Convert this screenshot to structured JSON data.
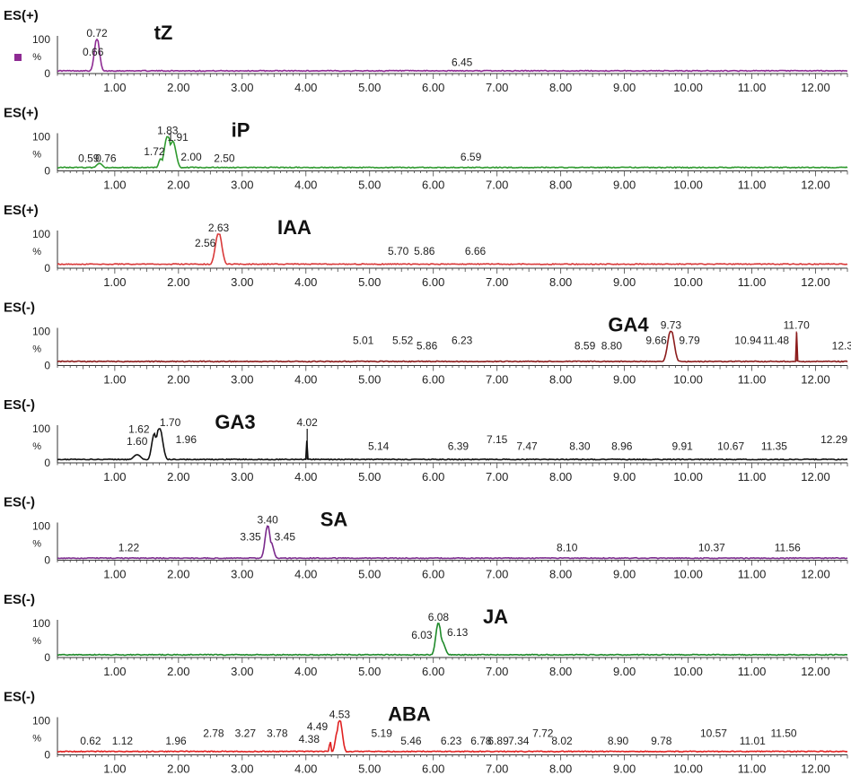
{
  "chart_data": [
    {
      "type": "line",
      "mode_label": "ES(+)",
      "compound": "tZ",
      "color": "#8e2b93",
      "x_ticks": [
        "1.00",
        "2.00",
        "3.00",
        "4.00",
        "5.00",
        "6.00",
        "7.00",
        "8.00",
        "9.00",
        "10.00",
        "11.00",
        "12.00"
      ],
      "xlim": [
        0.1,
        12.5
      ],
      "y_ticks": [
        "100",
        "0"
      ],
      "ylim": [
        0,
        100
      ],
      "ylabel": "%",
      "baseline": 8,
      "peaks": [
        {
          "x": 0.72,
          "y": 100,
          "w": 0.04
        }
      ],
      "labels": [
        {
          "text": "0.72",
          "x": 0.72,
          "y": 100
        },
        {
          "text": "0.66",
          "x": 0.66,
          "y": 45
        },
        {
          "text": "6.45",
          "x": 6.45,
          "y": 15
        }
      ],
      "marker": true
    },
    {
      "type": "line",
      "mode_label": "ES(+)",
      "compound": "iP",
      "color": "#2f9a2f",
      "x_ticks": [
        "1.00",
        "2.00",
        "3.00",
        "4.00",
        "5.00",
        "6.00",
        "7.00",
        "8.00",
        "9.00",
        "10.00",
        "11.00",
        "12.00"
      ],
      "xlim": [
        0.1,
        12.5
      ],
      "y_ticks": [
        "100",
        "0"
      ],
      "ylim": [
        0,
        100
      ],
      "ylabel": "%",
      "baseline": 10,
      "peaks": [
        {
          "x": 1.83,
          "y": 100,
          "w": 0.05
        },
        {
          "x": 1.91,
          "y": 82,
          "w": 0.05
        },
        {
          "x": 1.72,
          "y": 30,
          "w": 0.03
        },
        {
          "x": 0.76,
          "y": 16,
          "w": 0.05
        }
      ],
      "labels": [
        {
          "text": "1.83",
          "x": 1.83,
          "y": 100
        },
        {
          "text": "1.91",
          "x": 1.99,
          "y": 80
        },
        {
          "text": "1.72",
          "x": 1.62,
          "y": 38
        },
        {
          "text": "0.59",
          "x": 0.59,
          "y": 18
        },
        {
          "text": "0.76",
          "x": 0.86,
          "y": 18
        },
        {
          "text": "2.00",
          "x": 2.2,
          "y": 22
        },
        {
          "text": "2.50",
          "x": 2.72,
          "y": 18
        },
        {
          "text": "6.59",
          "x": 6.59,
          "y": 22
        }
      ],
      "marker": false
    },
    {
      "type": "line",
      "mode_label": "ES(+)",
      "compound": "IAA",
      "color": "#d93a3a",
      "x_ticks": [
        "1.00",
        "2.00",
        "3.00",
        "4.00",
        "5.00",
        "6.00",
        "7.00",
        "8.00",
        "9.00",
        "10.00",
        "11.00",
        "12.00"
      ],
      "xlim": [
        0.1,
        12.5
      ],
      "y_ticks": [
        "100",
        "0"
      ],
      "ylim": [
        0,
        100
      ],
      "ylabel": "%",
      "baseline": 12,
      "peaks": [
        {
          "x": 2.63,
          "y": 100,
          "w": 0.05
        }
      ],
      "labels": [
        {
          "text": "2.63",
          "x": 2.63,
          "y": 100
        },
        {
          "text": "2.56",
          "x": 2.42,
          "y": 55
        },
        {
          "text": "5.70",
          "x": 5.45,
          "y": 32
        },
        {
          "text": "5.86",
          "x": 5.86,
          "y": 32
        },
        {
          "text": "6.66",
          "x": 6.66,
          "y": 32
        }
      ],
      "marker": false
    },
    {
      "type": "line",
      "mode_label": "ES(-)",
      "compound": "GA4",
      "color": "#8c1c1c",
      "x_ticks": [
        "1.00",
        "2.00",
        "3.00",
        "4.00",
        "5.00",
        "6.00",
        "7.00",
        "8.00",
        "9.00",
        "10.00",
        "11.00",
        "12.00"
      ],
      "xlim": [
        0.1,
        12.5
      ],
      "y_ticks": [
        "100",
        "0"
      ],
      "ylim": [
        0,
        100
      ],
      "ylabel": "%",
      "baseline": 12,
      "peaks": [
        {
          "x": 9.73,
          "y": 100,
          "w": 0.05
        },
        {
          "x": 11.7,
          "y": 100,
          "w": 0.006
        }
      ],
      "labels": [
        {
          "text": "9.73",
          "x": 9.73,
          "y": 100
        },
        {
          "text": "9.66",
          "x": 9.5,
          "y": 55
        },
        {
          "text": "9.79",
          "x": 10.02,
          "y": 55
        },
        {
          "text": "11.70",
          "x": 11.7,
          "y": 100
        },
        {
          "text": "10.94",
          "x": 10.94,
          "y": 55
        },
        {
          "text": "11.48",
          "x": 11.38,
          "y": 55
        },
        {
          "text": "5.01",
          "x": 4.9,
          "y": 55
        },
        {
          "text": "5.52",
          "x": 5.52,
          "y": 55
        },
        {
          "text": "5.86",
          "x": 5.9,
          "y": 40
        },
        {
          "text": "6.23",
          "x": 6.45,
          "y": 55
        },
        {
          "text": "8.59",
          "x": 8.38,
          "y": 40
        },
        {
          "text": "8.80",
          "x": 8.8,
          "y": 40
        },
        {
          "text": "12.3",
          "x": 12.42,
          "y": 40
        }
      ],
      "marker": false
    },
    {
      "type": "line",
      "mode_label": "ES(-)",
      "compound": "GA3",
      "color": "#111111",
      "x_ticks": [
        "1.00",
        "2.00",
        "3.00",
        "4.00",
        "5.00",
        "6.00",
        "7.00",
        "8.00",
        "9.00",
        "10.00",
        "11.00",
        "12.00"
      ],
      "xlim": [
        0.1,
        12.5
      ],
      "y_ticks": [
        "100",
        "0"
      ],
      "ylim": [
        0,
        100
      ],
      "ylabel": "%",
      "baseline": 10,
      "peaks": [
        {
          "x": 1.7,
          "y": 100,
          "w": 0.05
        },
        {
          "x": 1.62,
          "y": 80,
          "w": 0.04
        },
        {
          "x": 4.02,
          "y": 100,
          "w": 0.005
        },
        {
          "x": 1.35,
          "y": 18,
          "w": 0.06
        }
      ],
      "labels": [
        {
          "text": "1.70",
          "x": 1.87,
          "y": 100
        },
        {
          "text": "1.62",
          "x": 1.38,
          "y": 80
        },
        {
          "text": "1.60",
          "x": 1.35,
          "y": 45
        },
        {
          "text": "1.96",
          "x": 2.12,
          "y": 50
        },
        {
          "text": "4.02",
          "x": 4.02,
          "y": 100
        },
        {
          "text": "5.14",
          "x": 5.14,
          "y": 30
        },
        {
          "text": "6.39",
          "x": 6.39,
          "y": 30
        },
        {
          "text": "7.15",
          "x": 7.0,
          "y": 50
        },
        {
          "text": "7.47",
          "x": 7.47,
          "y": 30
        },
        {
          "text": "8.30",
          "x": 8.3,
          "y": 30
        },
        {
          "text": "8.96",
          "x": 8.96,
          "y": 30
        },
        {
          "text": "9.91",
          "x": 9.91,
          "y": 30
        },
        {
          "text": "10.67",
          "x": 10.67,
          "y": 30
        },
        {
          "text": "11.35",
          "x": 11.35,
          "y": 30
        },
        {
          "text": "12.29",
          "x": 12.29,
          "y": 50
        }
      ],
      "marker": false
    },
    {
      "type": "line",
      "mode_label": "ES(-)",
      "compound": "SA",
      "color": "#7a2a8c",
      "x_ticks": [
        "1.00",
        "2.00",
        "3.00",
        "4.00",
        "5.00",
        "6.00",
        "7.00",
        "8.00",
        "9.00",
        "10.00",
        "11.00",
        "12.00"
      ],
      "xlim": [
        0.1,
        12.5
      ],
      "y_ticks": [
        "100",
        "0"
      ],
      "ylim": [
        0,
        100
      ],
      "ylabel": "%",
      "baseline": 6,
      "peaks": [
        {
          "x": 3.4,
          "y": 100,
          "w": 0.04
        },
        {
          "x": 3.45,
          "y": 50,
          "w": 0.04
        }
      ],
      "labels": [
        {
          "text": "3.40",
          "x": 3.4,
          "y": 100
        },
        {
          "text": "3.35",
          "x": 3.13,
          "y": 50
        },
        {
          "text": "3.45",
          "x": 3.67,
          "y": 50
        },
        {
          "text": "1.22",
          "x": 1.22,
          "y": 18
        },
        {
          "text": "8.10",
          "x": 8.1,
          "y": 18
        },
        {
          "text": "10.37",
          "x": 10.37,
          "y": 18
        },
        {
          "text": "11.56",
          "x": 11.56,
          "y": 18
        }
      ],
      "marker": false
    },
    {
      "type": "line",
      "mode_label": "ES(-)",
      "compound": "JA",
      "color": "#1f8a2a",
      "x_ticks": [
        "1.00",
        "2.00",
        "3.00",
        "4.00",
        "5.00",
        "6.00",
        "7.00",
        "8.00",
        "9.00",
        "10.00",
        "11.00",
        "12.00"
      ],
      "xlim": [
        0.1,
        12.5
      ],
      "y_ticks": [
        "100",
        "0"
      ],
      "ylim": [
        0,
        100
      ],
      "ylabel": "%",
      "baseline": 8,
      "peaks": [
        {
          "x": 6.08,
          "y": 100,
          "w": 0.04
        },
        {
          "x": 6.13,
          "y": 45,
          "w": 0.05
        }
      ],
      "labels": [
        {
          "text": "6.08",
          "x": 6.08,
          "y": 100
        },
        {
          "text": "6.03",
          "x": 5.82,
          "y": 48
        },
        {
          "text": "6.13",
          "x": 6.38,
          "y": 55
        }
      ],
      "marker": false
    },
    {
      "type": "line",
      "mode_label": "ES(-)",
      "compound": "ABA",
      "color": "#e02020",
      "x_ticks": [
        "1.00",
        "2.00",
        "3.00",
        "4.00",
        "5.00",
        "6.00",
        "7.00",
        "8.00",
        "9.00",
        "10.00",
        "11.00",
        "12.00"
      ],
      "xlim": [
        0.1,
        12.5
      ],
      "y_ticks": [
        "100",
        "0"
      ],
      "ylim": [
        0,
        100
      ],
      "ylabel": "%",
      "baseline": 10,
      "peaks": [
        {
          "x": 4.53,
          "y": 100,
          "w": 0.04
        },
        {
          "x": 4.49,
          "y": 60,
          "w": 0.03
        },
        {
          "x": 4.38,
          "y": 40,
          "w": 0.01
        }
      ],
      "labels": [
        {
          "text": "4.53",
          "x": 4.53,
          "y": 100
        },
        {
          "text": "4.49",
          "x": 4.18,
          "y": 65
        },
        {
          "text": "4.38",
          "x": 4.05,
          "y": 28
        },
        {
          "text": "0.62",
          "x": 0.62,
          "y": 22
        },
        {
          "text": "1.12",
          "x": 1.12,
          "y": 22
        },
        {
          "text": "1.96",
          "x": 1.96,
          "y": 22
        },
        {
          "text": "2.78",
          "x": 2.55,
          "y": 45
        },
        {
          "text": "3.27",
          "x": 3.05,
          "y": 45
        },
        {
          "text": "3.78",
          "x": 3.55,
          "y": 45
        },
        {
          "text": "5.19",
          "x": 5.19,
          "y": 45
        },
        {
          "text": "5.46",
          "x": 5.65,
          "y": 22
        },
        {
          "text": "6.23",
          "x": 6.28,
          "y": 22
        },
        {
          "text": "6.78",
          "x": 6.75,
          "y": 22
        },
        {
          "text": "6.89",
          "x": 7.02,
          "y": 22
        },
        {
          "text": "7.34",
          "x": 7.34,
          "y": 22
        },
        {
          "text": "7.72",
          "x": 7.72,
          "y": 45
        },
        {
          "text": "8.02",
          "x": 8.02,
          "y": 22
        },
        {
          "text": "8.90",
          "x": 8.9,
          "y": 22
        },
        {
          "text": "9.78",
          "x": 9.58,
          "y": 22
        },
        {
          "text": "10.57",
          "x": 10.4,
          "y": 45
        },
        {
          "text": "11.01",
          "x": 11.01,
          "y": 22
        },
        {
          "text": "11.50",
          "x": 11.5,
          "y": 45
        }
      ],
      "marker": false
    }
  ]
}
